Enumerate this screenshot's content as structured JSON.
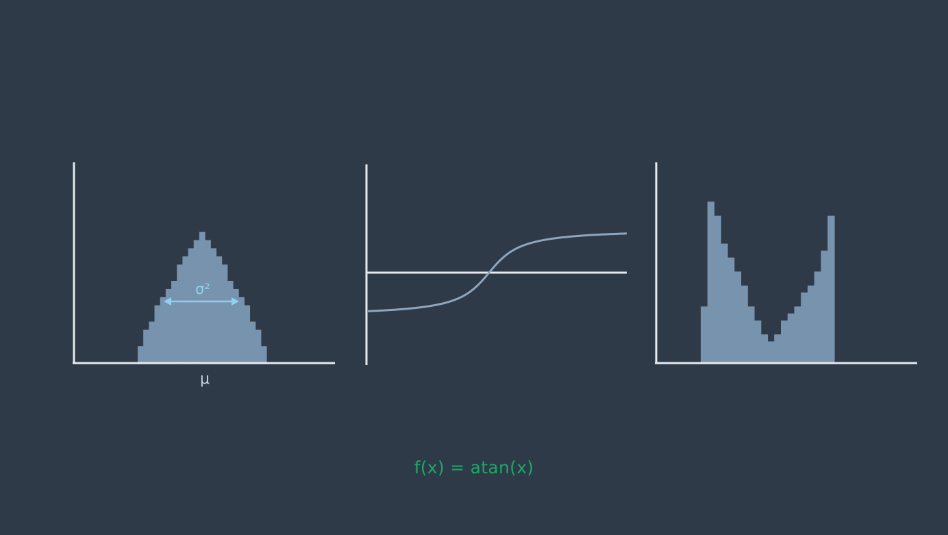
{
  "colors": {
    "background": "#2e3a48",
    "axis": "#e6eaee",
    "histogram_fill": "#7893ad",
    "curve": "#8fa6bd",
    "arrow": "#8fd2f0",
    "formula": "#1aa86a"
  },
  "gaussian_panel": {
    "mean_label": "μ",
    "variance_label": "σ²"
  },
  "formula": {
    "text": "f(x) = atan(x)"
  },
  "chart_data": [
    {
      "type": "bar",
      "name": "input-distribution",
      "description_shape": "bell",
      "values": [
        2,
        4,
        5,
        7,
        8,
        9,
        10,
        12,
        13,
        14,
        15,
        16,
        15,
        14,
        13,
        12,
        10,
        9,
        8,
        7,
        5,
        4,
        2
      ],
      "annotations": [
        "μ",
        "σ²"
      ]
    },
    {
      "type": "line",
      "name": "atan-transfer-curve",
      "function": "atan(x)"
    },
    {
      "type": "bar",
      "name": "output-distribution",
      "description_shape": "u-shaped",
      "values": [
        8,
        23,
        21,
        17,
        15,
        13,
        11,
        8,
        6,
        4,
        3,
        4,
        6,
        7,
        8,
        10,
        11,
        13,
        16,
        21
      ]
    }
  ]
}
